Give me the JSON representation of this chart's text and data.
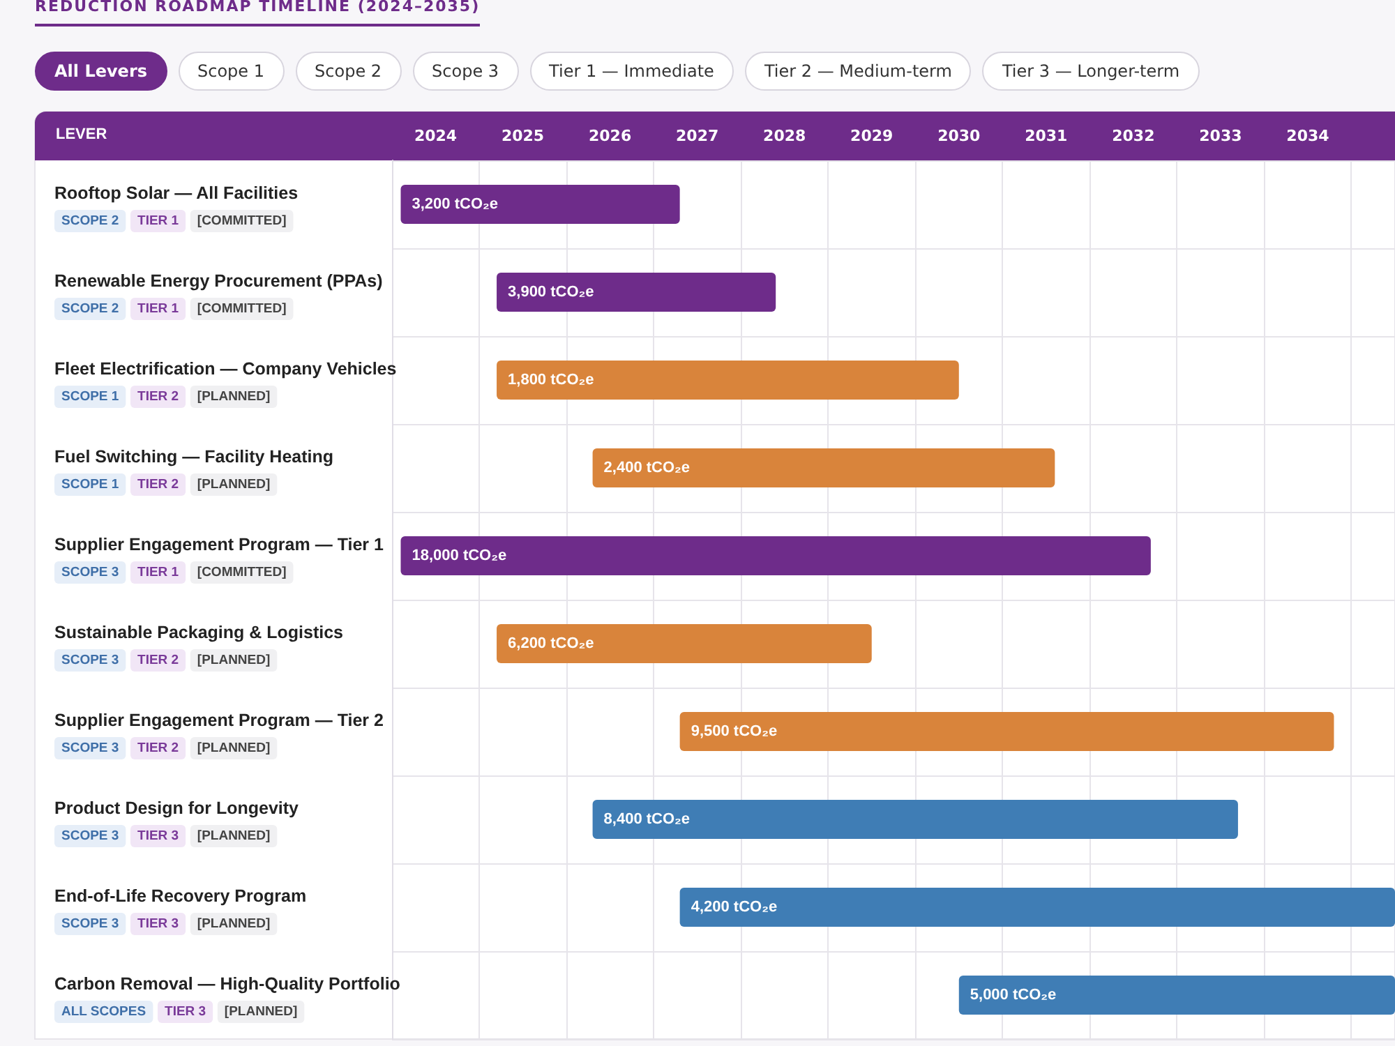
{
  "chart_data": {
    "type": "bar",
    "orientation": "horizontal",
    "title": "REDUCTION ROADMAP TIMELINE (2024–2035)",
    "annotations": [
      "All Levers",
      "Scope 1",
      "Scope 2",
      "Scope 3",
      "Tier 1 — Immediate",
      "Tier 2 — Medium-term",
      "Tier 3 — Longer-term",
      {
        "text": "LEVER"
      },
      {
        "text": "3,200 tCO₂e",
        "x": 2024.1,
        "y": "Rooftop Solar — All Facilities\nSCOPE 2  TIER 1  [COMMITTED]"
      },
      {
        "text": "3,900 tCO₂e",
        "x": 2025.2,
        "y": "Renewable Energy Procurement (PPAs)\nSCOPE 2  TIER 1  [COMMITTED]"
      },
      {
        "text": "1,800 tCO₂e",
        "x": 2025.2,
        "y": "Fleet Electrification — Company Vehicles\nSCOPE 1  TIER 2  [PLANNED]"
      },
      {
        "text": "2,400 tCO₂e",
        "x": 2026.3,
        "y": "Fuel Switching — Facility Heating\nSCOPE 1  TIER 2  [PLANNED]"
      },
      {
        "text": "18,000 tCO₂e",
        "x": 2024.1,
        "y": "Supplier Engagement Program — Tier 1\nSCOPE 3  TIER 1  [COMMITTED]"
      },
      {
        "text": "6,200 tCO₂e",
        "x": 2025.2,
        "y": "Sustainable Packaging & Logistics\nSCOPE 3  TIER 2  [PLANNED]"
      },
      {
        "text": "9,500 tCO₂e",
        "x": 2027.3,
        "y": "Supplier Engagement Program — Tier 2\nSCOPE 3  TIER 2  [PLANNED]"
      },
      {
        "text": "8,400 tCO₂e",
        "x": 2026.3,
        "y": "Product Design for Longevity\nSCOPE 3  TIER 3  [PLANNED]"
      },
      {
        "text": "4,200 tCO₂e",
        "x": 2027.3,
        "y": "End-of-Life Recovery Program\nSCOPE 3  TIER 3  [PLANNED]"
      },
      {
        "text": "5,000 tCO₂e",
        "x": 2030.5,
        "y": "Carbon Removal — High-Quality Portfolio\nALL SCOPES  TIER 3  [PLANNED]"
      }
    ],
    "categories": [
      "Rooftop Solar — All Facilities\nSCOPE 2  TIER 1  [COMMITTED]",
      "Renewable Energy Procurement (PPAs)\nSCOPE 2  TIER 1  [COMMITTED]",
      "Fleet Electrification — Company Vehicles\nSCOPE 1  TIER 2  [PLANNED]",
      "Fuel Switching — Facility Heating\nSCOPE 1  TIER 2  [PLANNED]",
      "Supplier Engagement Program — Tier 1\nSCOPE 3  TIER 1  [COMMITTED]",
      "Sustainable Packaging & Logistics\nSCOPE 3  TIER 2  [PLANNED]",
      "Supplier Engagement Program — Tier 2\nSCOPE 3  TIER 2  [PLANNED]",
      "Product Design for Longevity\nSCOPE 3  TIER 3  [PLANNED]",
      "End-of-Life Recovery Program\nSCOPE 3  TIER 3  [PLANNED]",
      "Carbon Removal — High-Quality Portfolio\nALL SCOPES  TIER 3  [PLANNED]"
    ],
    "base": [
      2024.1,
      2025.2,
      2025.2,
      2026.3,
      2024.1,
      2025.2,
      2027.3,
      2026.3,
      2027.3,
      2030.5
    ],
    "values": [
      3.2,
      3.2,
      5.3,
      5.3,
      8.6,
      4.3,
      7.5,
      7.4,
      8.2,
      5.0
    ],
    "colors": [
      "#6e2c8a",
      "#6e2c8a",
      "#d9843b",
      "#d9843b",
      "#6e2c8a",
      "#d9843b",
      "#d9843b",
      "#3f7db5",
      "#3f7db5",
      "#3f7db5"
    ],
    "xlim": [
      2024,
      2035.5
    ],
    "xticks": [
      {
        "value": 2024.5,
        "label": "2024"
      },
      {
        "value": 2025.5,
        "label": "2025"
      },
      {
        "value": 2026.5,
        "label": "2026"
      },
      {
        "value": 2027.5,
        "label": "2027"
      },
      {
        "value": 2028.5,
        "label": "2028"
      },
      {
        "value": 2029.5,
        "label": "2029"
      },
      {
        "value": 2030.5,
        "label": "2030"
      },
      {
        "value": 2031.5,
        "label": "2031"
      },
      {
        "value": 2032.5,
        "label": "2032"
      },
      {
        "value": 2033.5,
        "label": "2033"
      },
      {
        "value": 2034.5,
        "label": "2034"
      }
    ],
    "grid": true
  }
}
